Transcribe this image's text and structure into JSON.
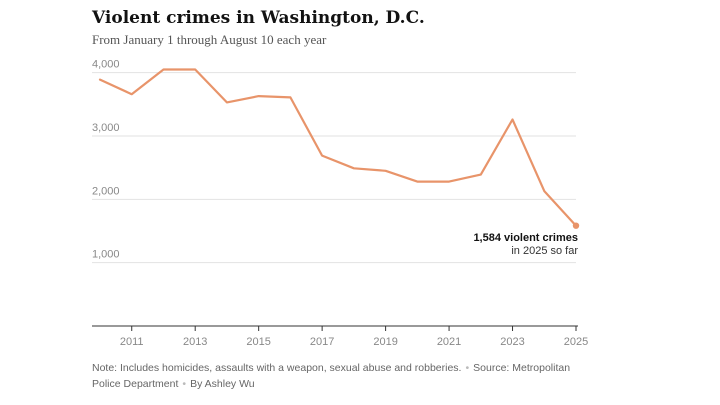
{
  "title": "Violent crimes in Washington, D.C.",
  "subtitle": "From January 1 through August 10 each year",
  "note": {
    "text": "Note: Includes homicides, assaults with a weapon, sexual abuse and robberies.",
    "source": "Source: Metropolitan Police Department",
    "byline": "By Ashley Wu"
  },
  "annotation": {
    "value_text": "1,584 violent crimes",
    "detail_text": "in 2025 so far"
  },
  "colors": {
    "line": "#e8946a",
    "grid": "#e2e2e2",
    "axis": "#333333",
    "tick_text": "#888888"
  },
  "chart_data": {
    "type": "line",
    "title": "Violent crimes in Washington, D.C.",
    "subtitle": "From January 1 through August 10 each year",
    "xlabel": "",
    "ylabel": "",
    "xlim": [
      2010,
      2025
    ],
    "ylim": [
      0,
      4200
    ],
    "grid": true,
    "x_ticks": [
      2011,
      2013,
      2015,
      2017,
      2019,
      2021,
      2023,
      2025
    ],
    "x_tick_labels": [
      "2011",
      "2013",
      "2015",
      "2017",
      "2019",
      "2021",
      "2023",
      "2025"
    ],
    "y_ticks": [
      1000,
      2000,
      3000,
      4000
    ],
    "y_tick_labels": [
      "1,000",
      "2,000",
      "3,000",
      "4,000"
    ],
    "series": [
      {
        "x": [
          2010,
          2011,
          2012,
          2013,
          2014,
          2015,
          2016,
          2017,
          2018,
          2019,
          2020,
          2021,
          2022,
          2023,
          2024,
          2025
        ],
        "values": [
          3890,
          3660,
          4050,
          4050,
          3530,
          3630,
          3610,
          2690,
          2490,
          2450,
          2280,
          2280,
          2390,
          3260,
          2130,
          1584
        ]
      }
    ]
  }
}
